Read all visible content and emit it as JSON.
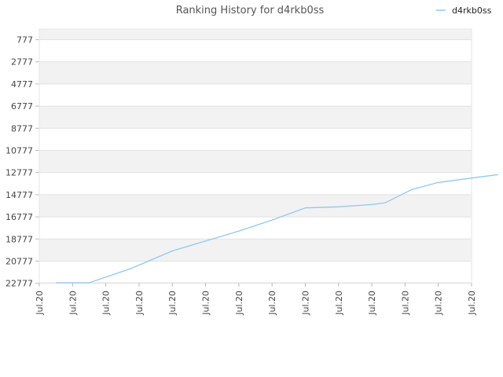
{
  "chart_data": {
    "type": "line",
    "title": "Ranking History for d4rkb0ss",
    "xlabel": "",
    "ylabel": "",
    "y_inverted": true,
    "ylim": [
      777,
      22777
    ],
    "y_ticks": [
      "777",
      "2777",
      "4777",
      "6777",
      "8777",
      "10777",
      "12777",
      "14777",
      "16777",
      "18777",
      "20777",
      "22777"
    ],
    "x_ticks": [
      "Jul.20",
      "Jul.20",
      "Jul.20",
      "Jul.20",
      "Jul.20",
      "Jul.20",
      "Jul.20",
      "Jul.20",
      "Jul.20",
      "Jul.20",
      "Jul.20",
      "Jul.20",
      "Jul.20",
      "Jul.20"
    ],
    "grid": true,
    "legend_position": "top-right",
    "series": [
      {
        "name": "d4rkb0ss",
        "color": "#90c8f0",
        "x": [
          0.5,
          1.5,
          2.75,
          4,
          5,
          6,
          7,
          8,
          9,
          10,
          10.4,
          11.2,
          12,
          13,
          13.8
        ],
        "values": [
          22777,
          22777,
          21500,
          19900,
          19000,
          18100,
          17100,
          16000,
          15900,
          15700,
          15550,
          14350,
          13700,
          13300,
          12990
        ]
      }
    ]
  }
}
